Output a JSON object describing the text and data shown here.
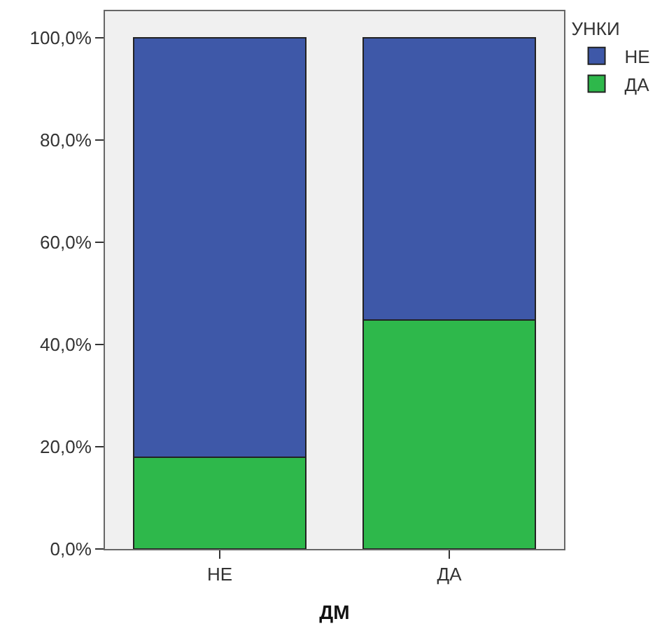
{
  "chart_data": {
    "type": "bar",
    "stacked": true,
    "xlabel": "ДМ",
    "legend_title": "УНКИ",
    "legend": "top right",
    "categories": [
      "НЕ",
      "ДА"
    ],
    "series": [
      {
        "name": "ДА",
        "color": "#2eb84b",
        "values": [
          17.9,
          44.8
        ]
      },
      {
        "name": "НЕ",
        "color": "#3e58a8",
        "values": [
          82.1,
          55.2
        ]
      }
    ],
    "ylim": [
      0,
      105.2
    ],
    "yticks": [
      {
        "value": 0,
        "label": "0,0%"
      },
      {
        "value": 20,
        "label": "20,0%"
      },
      {
        "value": 40,
        "label": "40,0%"
      },
      {
        "value": 60,
        "label": "60,0%"
      },
      {
        "value": 80,
        "label": "80,0%"
      },
      {
        "value": 100,
        "label": "100,0%"
      }
    ],
    "grid": false
  }
}
